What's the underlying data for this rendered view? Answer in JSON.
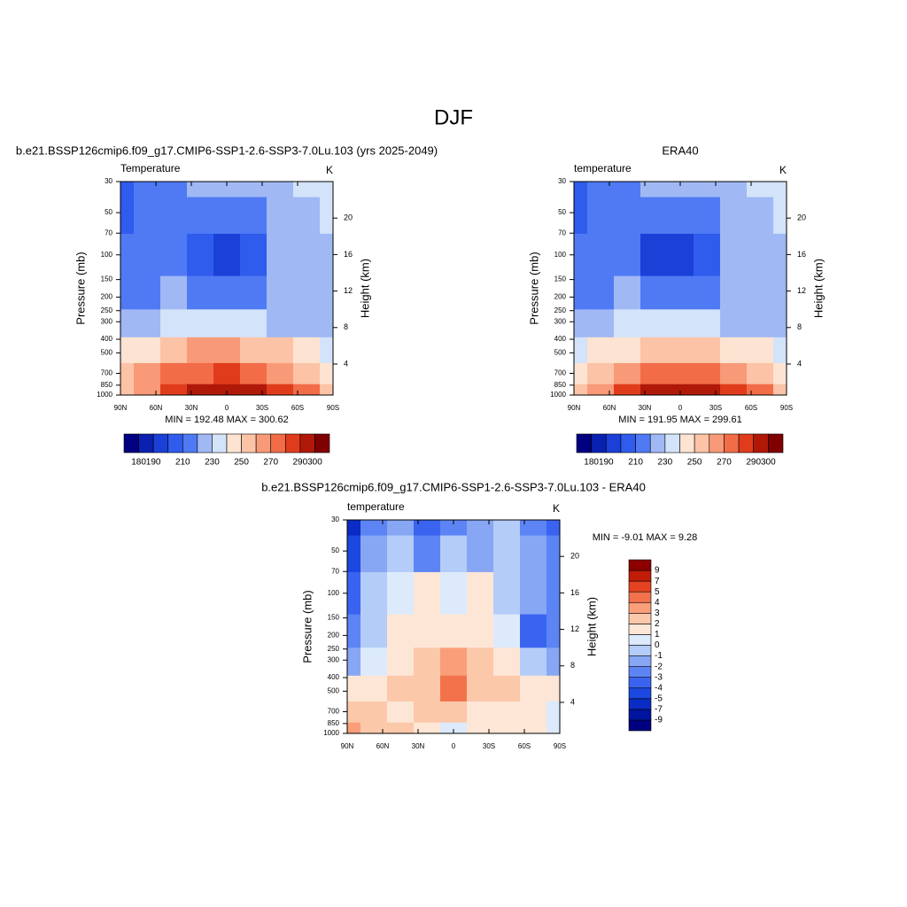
{
  "title": "DJF",
  "chart_data": [
    {
      "type": "contour",
      "title": "b.e21.BSSP126cmip6.f09_g17.CMIP6-SSP1-2.6-SSP3-7.0Lu.103 (yrs 2025-2049)",
      "left_label": "Temperature",
      "right_label": "K",
      "ylabel": "Pressure (mb)",
      "y2label": "Height (km)",
      "stats": "MIN = 192.48  MAX = 300.62",
      "x": [
        90,
        67.5,
        45,
        22.5,
        0,
        -22.5,
        -45,
        -67.5,
        -90
      ],
      "y": [
        30,
        50,
        100,
        200,
        300,
        500,
        700,
        1000
      ],
      "values": [
        [
          205,
          212,
          218,
          222,
          222,
          222,
          225,
          232,
          238
        ],
        [
          205,
          210,
          215,
          213,
          212,
          214,
          220,
          228,
          232
        ],
        [
          210,
          215,
          215,
          200,
          198,
          205,
          222,
          225,
          228
        ],
        [
          212,
          218,
          222,
          215,
          212,
          218,
          225,
          222,
          225
        ],
        [
          221,
          225,
          232,
          235,
          235,
          232,
          228,
          225,
          228
        ],
        [
          241,
          245,
          251,
          261,
          262,
          258,
          251,
          243,
          238
        ],
        [
          251,
          261,
          271,
          279,
          281,
          276,
          268,
          256,
          246
        ],
        [
          256,
          268,
          285,
          295,
          299,
          295,
          285,
          271,
          256
        ]
      ],
      "xlim": [
        90,
        -90
      ],
      "ylim": [
        1000,
        30
      ],
      "log_y": true,
      "xticks": [
        {
          "value": 90,
          "label": "90N"
        },
        {
          "value": 60,
          "label": "60N"
        },
        {
          "value": 30,
          "label": "30N"
        },
        0,
        {
          "value": -30,
          "label": "30S"
        },
        {
          "value": -60,
          "label": "60S"
        },
        {
          "value": -90,
          "label": "90S"
        }
      ],
      "yticks": [
        30,
        50,
        70,
        100,
        150,
        200,
        250,
        300,
        400,
        500,
        700,
        850,
        1000
      ],
      "y2lim": [
        0.6,
        24
      ],
      "y2ticks": [
        4,
        8,
        12,
        16,
        20
      ],
      "colorbar": {
        "orientation": "horizontal",
        "levels": [
          180,
          190,
          200,
          210,
          220,
          230,
          240,
          250,
          260,
          270,
          280,
          290,
          300
        ],
        "colors": [
          "#000080",
          "#0a20b0",
          "#1a40d8",
          "#2f5cec",
          "#4f7af4",
          "#a0b8f4",
          "#d2e3fa",
          "#fde3d2",
          "#fcc3a6",
          "#f89a78",
          "#f26c48",
          "#e03c1c",
          "#b01808",
          "#800000"
        ],
        "ticks": [
          180,
          190,
          210,
          230,
          250,
          270,
          290,
          300
        ]
      }
    },
    {
      "type": "contour",
      "title": "ERA40",
      "left_label": "temperature",
      "right_label": "K",
      "ylabel": "Pressure (mb)",
      "y2label": "Height (km)",
      "stats": "MIN = 191.95  MAX = 299.61",
      "x": [
        90,
        67.5,
        45,
        22.5,
        0,
        -22.5,
        -45,
        -67.5,
        -90
      ],
      "y": [
        30,
        50,
        100,
        200,
        300,
        500,
        700,
        1000
      ],
      "values": [
        [
          208,
          214,
          219,
          222,
          223,
          223,
          226,
          234,
          238
        ],
        [
          208,
          213,
          215,
          212,
          211,
          214,
          221,
          229,
          233
        ],
        [
          212,
          216,
          214,
          199,
          197,
          204,
          223,
          226,
          229
        ],
        [
          214,
          219,
          221,
          214,
          211,
          217,
          224,
          223,
          226
        ],
        [
          222,
          226,
          231,
          234,
          234,
          231,
          228,
          226,
          229
        ],
        [
          239,
          244,
          249,
          258,
          259,
          256,
          249,
          242,
          238
        ],
        [
          248,
          259,
          269,
          277,
          279,
          275,
          266,
          255,
          245
        ],
        [
          252,
          266,
          283,
          294,
          298,
          294,
          284,
          270,
          255
        ]
      ],
      "xlim": [
        90,
        -90
      ],
      "ylim": [
        1000,
        30
      ],
      "log_y": true,
      "xticks": [
        {
          "value": 90,
          "label": "90N"
        },
        {
          "value": 60,
          "label": "60N"
        },
        {
          "value": 30,
          "label": "30N"
        },
        0,
        {
          "value": -30,
          "label": "30S"
        },
        {
          "value": -60,
          "label": "60S"
        },
        {
          "value": -90,
          "label": "90S"
        }
      ],
      "yticks": [
        30,
        50,
        70,
        100,
        150,
        200,
        250,
        300,
        400,
        500,
        700,
        850,
        1000
      ],
      "y2lim": [
        0.6,
        24
      ],
      "y2ticks": [
        4,
        8,
        12,
        16,
        20
      ],
      "colorbar": {
        "orientation": "horizontal",
        "levels": [
          180,
          190,
          200,
          210,
          220,
          230,
          240,
          250,
          260,
          270,
          280,
          290,
          300
        ],
        "colors": [
          "#000080",
          "#0a20b0",
          "#1a40d8",
          "#2f5cec",
          "#4f7af4",
          "#a0b8f4",
          "#d2e3fa",
          "#fde3d2",
          "#fcc3a6",
          "#f89a78",
          "#f26c48",
          "#e03c1c",
          "#b01808",
          "#800000"
        ],
        "ticks": [
          180,
          190,
          210,
          230,
          250,
          270,
          290,
          300
        ]
      }
    },
    {
      "type": "contour",
      "title": "b.e21.BSSP126cmip6.f09_g17.CMIP6-SSP1-2.6-SSP3-7.0Lu.103 - ERA40",
      "left_label": "temperature",
      "right_label": "K",
      "ylabel": "Pressure (mb)",
      "y2label": "Height (km)",
      "stats": "MIN =  -9.01  MAX =   9.28",
      "x": [
        90,
        67.5,
        45,
        22.5,
        0,
        -22.5,
        -45,
        -67.5,
        -90
      ],
      "y": [
        30,
        50,
        100,
        200,
        300,
        500,
        700,
        1000
      ],
      "values": [
        [
          -6,
          -3,
          -2,
          -4,
          -3,
          -2,
          -1,
          -3,
          -4
        ],
        [
          -5,
          -2,
          -1,
          -3,
          -1,
          -2,
          -1,
          -2,
          -3
        ],
        [
          -4,
          -1,
          0.5,
          1,
          0.5,
          1,
          -1,
          -2,
          -3
        ],
        [
          -3,
          -1,
          1,
          1.5,
          1.5,
          1.5,
          0.5,
          -4,
          -3
        ],
        [
          -2,
          0.5,
          1.5,
          2,
          3,
          2,
          1.5,
          -1,
          -2
        ],
        [
          1.5,
          1.5,
          2,
          2.5,
          4,
          2,
          2,
          1.5,
          1
        ],
        [
          2.5,
          2,
          1.5,
          2,
          2,
          1.5,
          1.5,
          1,
          0.5
        ],
        [
          3,
          2.5,
          2,
          1,
          0.5,
          1,
          1.5,
          1,
          0.5
        ]
      ],
      "xlim": [
        90,
        -90
      ],
      "ylim": [
        1000,
        30
      ],
      "log_y": true,
      "xticks": [
        {
          "value": 90,
          "label": "90N"
        },
        {
          "value": 60,
          "label": "60N"
        },
        {
          "value": 30,
          "label": "30N"
        },
        0,
        {
          "value": -30,
          "label": "30S"
        },
        {
          "value": -60,
          "label": "60S"
        },
        {
          "value": -90,
          "label": "90S"
        }
      ],
      "yticks": [
        30,
        50,
        70,
        100,
        150,
        200,
        250,
        300,
        400,
        500,
        700,
        850,
        1000
      ],
      "y2lim": [
        0.6,
        24
      ],
      "y2ticks": [
        4,
        8,
        12,
        16,
        20
      ],
      "colorbar": {
        "orientation": "vertical",
        "levels": [
          -9,
          -7,
          -5,
          -4,
          -3,
          -2,
          -1,
          0,
          1,
          2,
          3,
          4,
          5,
          7,
          9
        ],
        "colors": [
          "#000080",
          "#0014a0",
          "#0a2cc4",
          "#1a48e0",
          "#3a64f0",
          "#5c84f4",
          "#87a6f4",
          "#b4ccf8",
          "#dceafc",
          "#fde6d6",
          "#fcc8aa",
          "#fa9e7a",
          "#f2724c",
          "#e44220",
          "#c01c08",
          "#8c0000"
        ],
        "ticks": [
          -9,
          -7,
          -5,
          -4,
          -3,
          -2,
          -1,
          0,
          1,
          2,
          3,
          4,
          5,
          7,
          9
        ]
      }
    }
  ]
}
